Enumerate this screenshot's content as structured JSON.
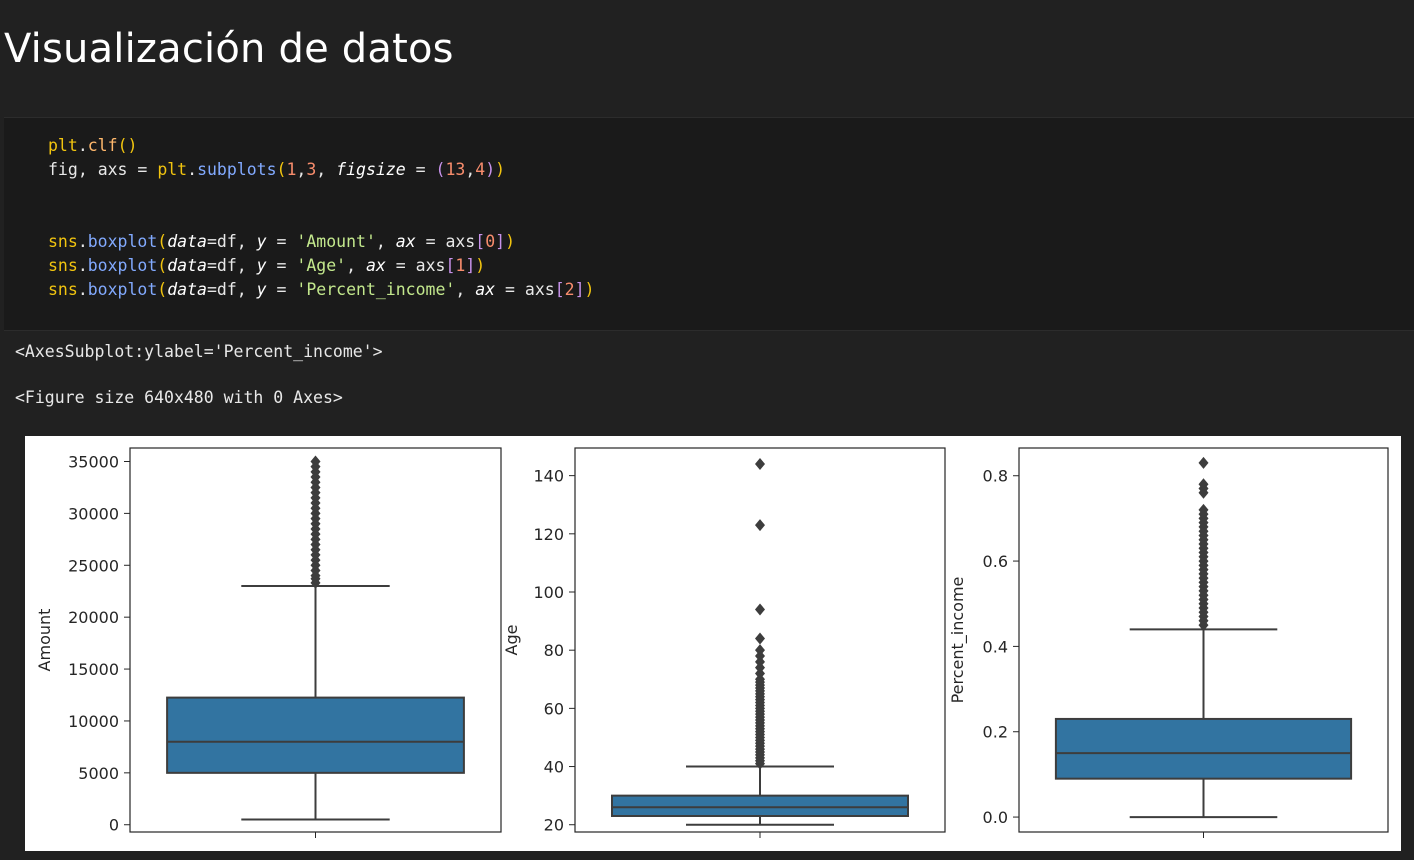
{
  "page": {
    "title": "Visualización de datos"
  },
  "code_cell": {
    "lines": [
      [
        {
          "t": "plt",
          "c": "mod"
        },
        {
          "t": ".",
          "c": "plain"
        },
        {
          "t": "clf",
          "c": "fn"
        },
        {
          "t": "()",
          "c": "par"
        }
      ],
      [
        {
          "t": "fig",
          "c": "plain"
        },
        {
          "t": ", ",
          "c": "plain"
        },
        {
          "t": "axs",
          "c": "plain"
        },
        {
          "t": " = ",
          "c": "plain"
        },
        {
          "t": "plt",
          "c": "mod"
        },
        {
          "t": ".",
          "c": "plain"
        },
        {
          "t": "subplots",
          "c": "meth"
        },
        {
          "t": "(",
          "c": "par"
        },
        {
          "t": "1",
          "c": "num"
        },
        {
          "t": ",",
          "c": "plain"
        },
        {
          "t": "3",
          "c": "num"
        },
        {
          "t": ", ",
          "c": "plain"
        },
        {
          "t": "figsize",
          "c": "kw"
        },
        {
          "t": " = ",
          "c": "plain"
        },
        {
          "t": "(",
          "c": "bracket"
        },
        {
          "t": "13",
          "c": "num"
        },
        {
          "t": ",",
          "c": "plain"
        },
        {
          "t": "4",
          "c": "num"
        },
        {
          "t": ")",
          "c": "bracket"
        },
        {
          "t": ")",
          "c": "par"
        }
      ],
      [],
      [],
      [
        {
          "t": "sns",
          "c": "mod"
        },
        {
          "t": ".",
          "c": "plain"
        },
        {
          "t": "boxplot",
          "c": "meth"
        },
        {
          "t": "(",
          "c": "par"
        },
        {
          "t": "data",
          "c": "kw"
        },
        {
          "t": "=df, ",
          "c": "plain"
        },
        {
          "t": "y",
          "c": "kw"
        },
        {
          "t": " = ",
          "c": "plain"
        },
        {
          "t": "'Amount'",
          "c": "str"
        },
        {
          "t": ", ",
          "c": "plain"
        },
        {
          "t": "ax",
          "c": "kw"
        },
        {
          "t": " = axs",
          "c": "plain"
        },
        {
          "t": "[",
          "c": "bracket"
        },
        {
          "t": "0",
          "c": "num"
        },
        {
          "t": "]",
          "c": "bracket"
        },
        {
          "t": ")",
          "c": "par"
        }
      ],
      [
        {
          "t": "sns",
          "c": "mod"
        },
        {
          "t": ".",
          "c": "plain"
        },
        {
          "t": "boxplot",
          "c": "meth"
        },
        {
          "t": "(",
          "c": "par"
        },
        {
          "t": "data",
          "c": "kw"
        },
        {
          "t": "=df, ",
          "c": "plain"
        },
        {
          "t": "y",
          "c": "kw"
        },
        {
          "t": " = ",
          "c": "plain"
        },
        {
          "t": "'Age'",
          "c": "str"
        },
        {
          "t": ", ",
          "c": "plain"
        },
        {
          "t": "ax",
          "c": "kw"
        },
        {
          "t": " = axs",
          "c": "plain"
        },
        {
          "t": "[",
          "c": "bracket"
        },
        {
          "t": "1",
          "c": "num"
        },
        {
          "t": "]",
          "c": "bracket"
        },
        {
          "t": ")",
          "c": "par"
        }
      ],
      [
        {
          "t": "sns",
          "c": "mod"
        },
        {
          "t": ".",
          "c": "plain"
        },
        {
          "t": "boxplot",
          "c": "meth"
        },
        {
          "t": "(",
          "c": "par"
        },
        {
          "t": "data",
          "c": "kw"
        },
        {
          "t": "=df, ",
          "c": "plain"
        },
        {
          "t": "y",
          "c": "kw"
        },
        {
          "t": " = ",
          "c": "plain"
        },
        {
          "t": "'Percent_income'",
          "c": "str"
        },
        {
          "t": ", ",
          "c": "plain"
        },
        {
          "t": "ax",
          "c": "kw"
        },
        {
          "t": " = axs",
          "c": "plain"
        },
        {
          "t": "[",
          "c": "bracket"
        },
        {
          "t": "2",
          "c": "num"
        },
        {
          "t": "]",
          "c": "bracket"
        },
        {
          "t": ")",
          "c": "par"
        }
      ]
    ]
  },
  "outputs": {
    "line1": "<AxesSubplot:ylabel='Percent_income'>",
    "line2": "<Figure size 640x480 with 0 Axes>"
  },
  "colors": {
    "box_fill": "#3274a1",
    "line": "#3d3d3d"
  },
  "chart_data": [
    {
      "type": "box",
      "ylabel": "Amount",
      "ylim": [
        -700,
        36300
      ],
      "yticks": [
        0,
        5000,
        10000,
        15000,
        20000,
        25000,
        30000,
        35000
      ],
      "tick_labels": [
        "0",
        "5000",
        "10000",
        "15000",
        "20000",
        "25000",
        "30000",
        "35000"
      ],
      "whisker_low": 500,
      "q1": 5000,
      "median": 8000,
      "q3": 12250,
      "whisker_high": 23000,
      "outliers": [
        23300,
        23700,
        24000,
        24500,
        25000,
        25500,
        26000,
        26500,
        27000,
        27500,
        28000,
        28500,
        29000,
        29500,
        30000,
        30500,
        31000,
        31500,
        32000,
        32500,
        33000,
        33500,
        34000,
        34500,
        35000
      ]
    },
    {
      "type": "box",
      "ylabel": "Age",
      "ylim": [
        17.5,
        149.5
      ],
      "yticks": [
        20,
        40,
        60,
        80,
        100,
        120,
        140
      ],
      "tick_labels": [
        "20",
        "40",
        "60",
        "80",
        "100",
        "120",
        "140"
      ],
      "whisker_low": 20,
      "q1": 23,
      "median": 26,
      "q3": 30,
      "whisker_high": 40,
      "outliers": [
        41,
        42,
        43,
        44,
        45,
        46,
        47,
        48,
        49,
        50,
        51,
        52,
        53,
        54,
        55,
        56,
        57,
        58,
        59,
        60,
        61,
        62,
        63,
        64,
        65,
        66,
        67,
        68,
        69,
        70,
        72,
        74,
        76,
        78,
        80,
        84,
        94,
        123,
        144
      ]
    },
    {
      "type": "box",
      "ylabel": "Percent_income",
      "ylim": [
        -0.035,
        0.865
      ],
      "yticks": [
        0.0,
        0.2,
        0.4,
        0.6,
        0.8
      ],
      "tick_labels": [
        "0.0",
        "0.2",
        "0.4",
        "0.6",
        "0.8"
      ],
      "whisker_low": 0.0,
      "q1": 0.09,
      "median": 0.15,
      "q3": 0.23,
      "whisker_high": 0.44,
      "outliers": [
        0.45,
        0.46,
        0.47,
        0.48,
        0.49,
        0.5,
        0.51,
        0.52,
        0.53,
        0.54,
        0.55,
        0.56,
        0.57,
        0.58,
        0.59,
        0.6,
        0.61,
        0.62,
        0.63,
        0.64,
        0.65,
        0.66,
        0.67,
        0.68,
        0.69,
        0.7,
        0.71,
        0.72,
        0.76,
        0.77,
        0.78,
        0.83
      ]
    }
  ]
}
